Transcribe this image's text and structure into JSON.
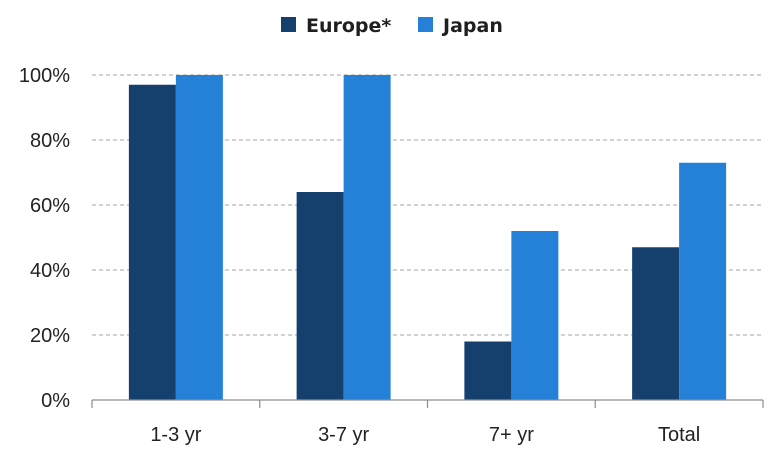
{
  "chart_data": {
    "type": "bar",
    "title": "",
    "xlabel": "",
    "ylabel": "",
    "categories": [
      "1-3 yr",
      "3-7 yr",
      "7+ yr",
      "Total"
    ],
    "series": [
      {
        "name": "Europe*",
        "color": "#15406d",
        "values": [
          97,
          64,
          18,
          47
        ]
      },
      {
        "name": "Japan",
        "color": "#2481d7",
        "values": [
          100,
          100,
          52,
          73
        ]
      }
    ],
    "ylim": [
      0,
      100
    ],
    "yticks": [
      0,
      20,
      40,
      60,
      80,
      100
    ],
    "ytick_labels": [
      "0%",
      "20%",
      "40%",
      "60%",
      "80%",
      "100%"
    ],
    "grid": "horizontal-dashed",
    "legend_position": "top-center"
  }
}
